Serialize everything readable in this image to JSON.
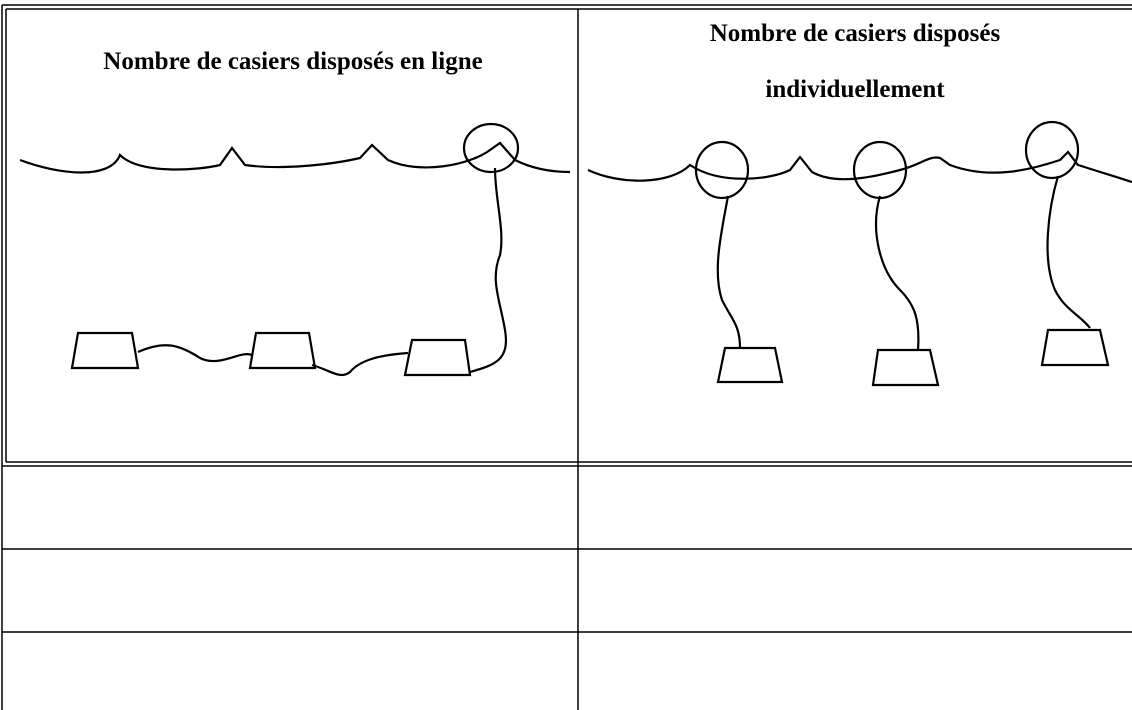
{
  "table": {
    "header": [
      "Nombre de casiers disposés en ligne",
      "Nombre de casiers disposés individuellement"
    ]
  }
}
